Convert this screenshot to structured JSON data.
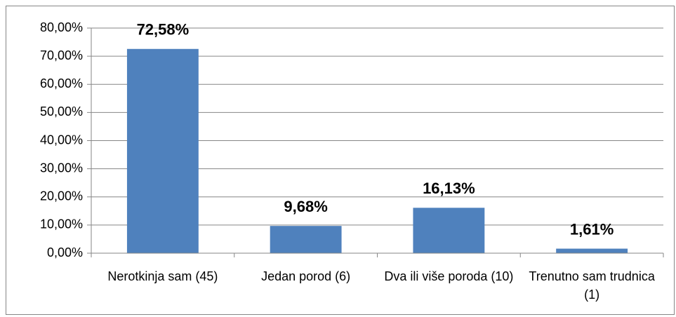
{
  "chart_data": {
    "type": "bar",
    "categories": [
      "Nerotkinja sam (45)",
      "Jedan porod (6)",
      "Dva ili više poroda (10)",
      "Trenutno sam trudnica (1)"
    ],
    "values": [
      72.58,
      9.68,
      16.13,
      1.61
    ],
    "value_labels": [
      "72,58%",
      "9,68%",
      "16,13%",
      "1,61%"
    ],
    "color": "#4f81bd",
    "ylim": [
      0,
      80
    ],
    "yticks": [
      {
        "value": 0,
        "label": "0,00%"
      },
      {
        "value": 10,
        "label": "10,00%"
      },
      {
        "value": 20,
        "label": "20,00%"
      },
      {
        "value": 30,
        "label": "30,00%"
      },
      {
        "value": 40,
        "label": "40,00%"
      },
      {
        "value": 50,
        "label": "50,00%"
      },
      {
        "value": 60,
        "label": "60,00%"
      },
      {
        "value": 70,
        "label": "70,00%"
      },
      {
        "value": 80,
        "label": "80,00%"
      }
    ],
    "grid": true
  }
}
